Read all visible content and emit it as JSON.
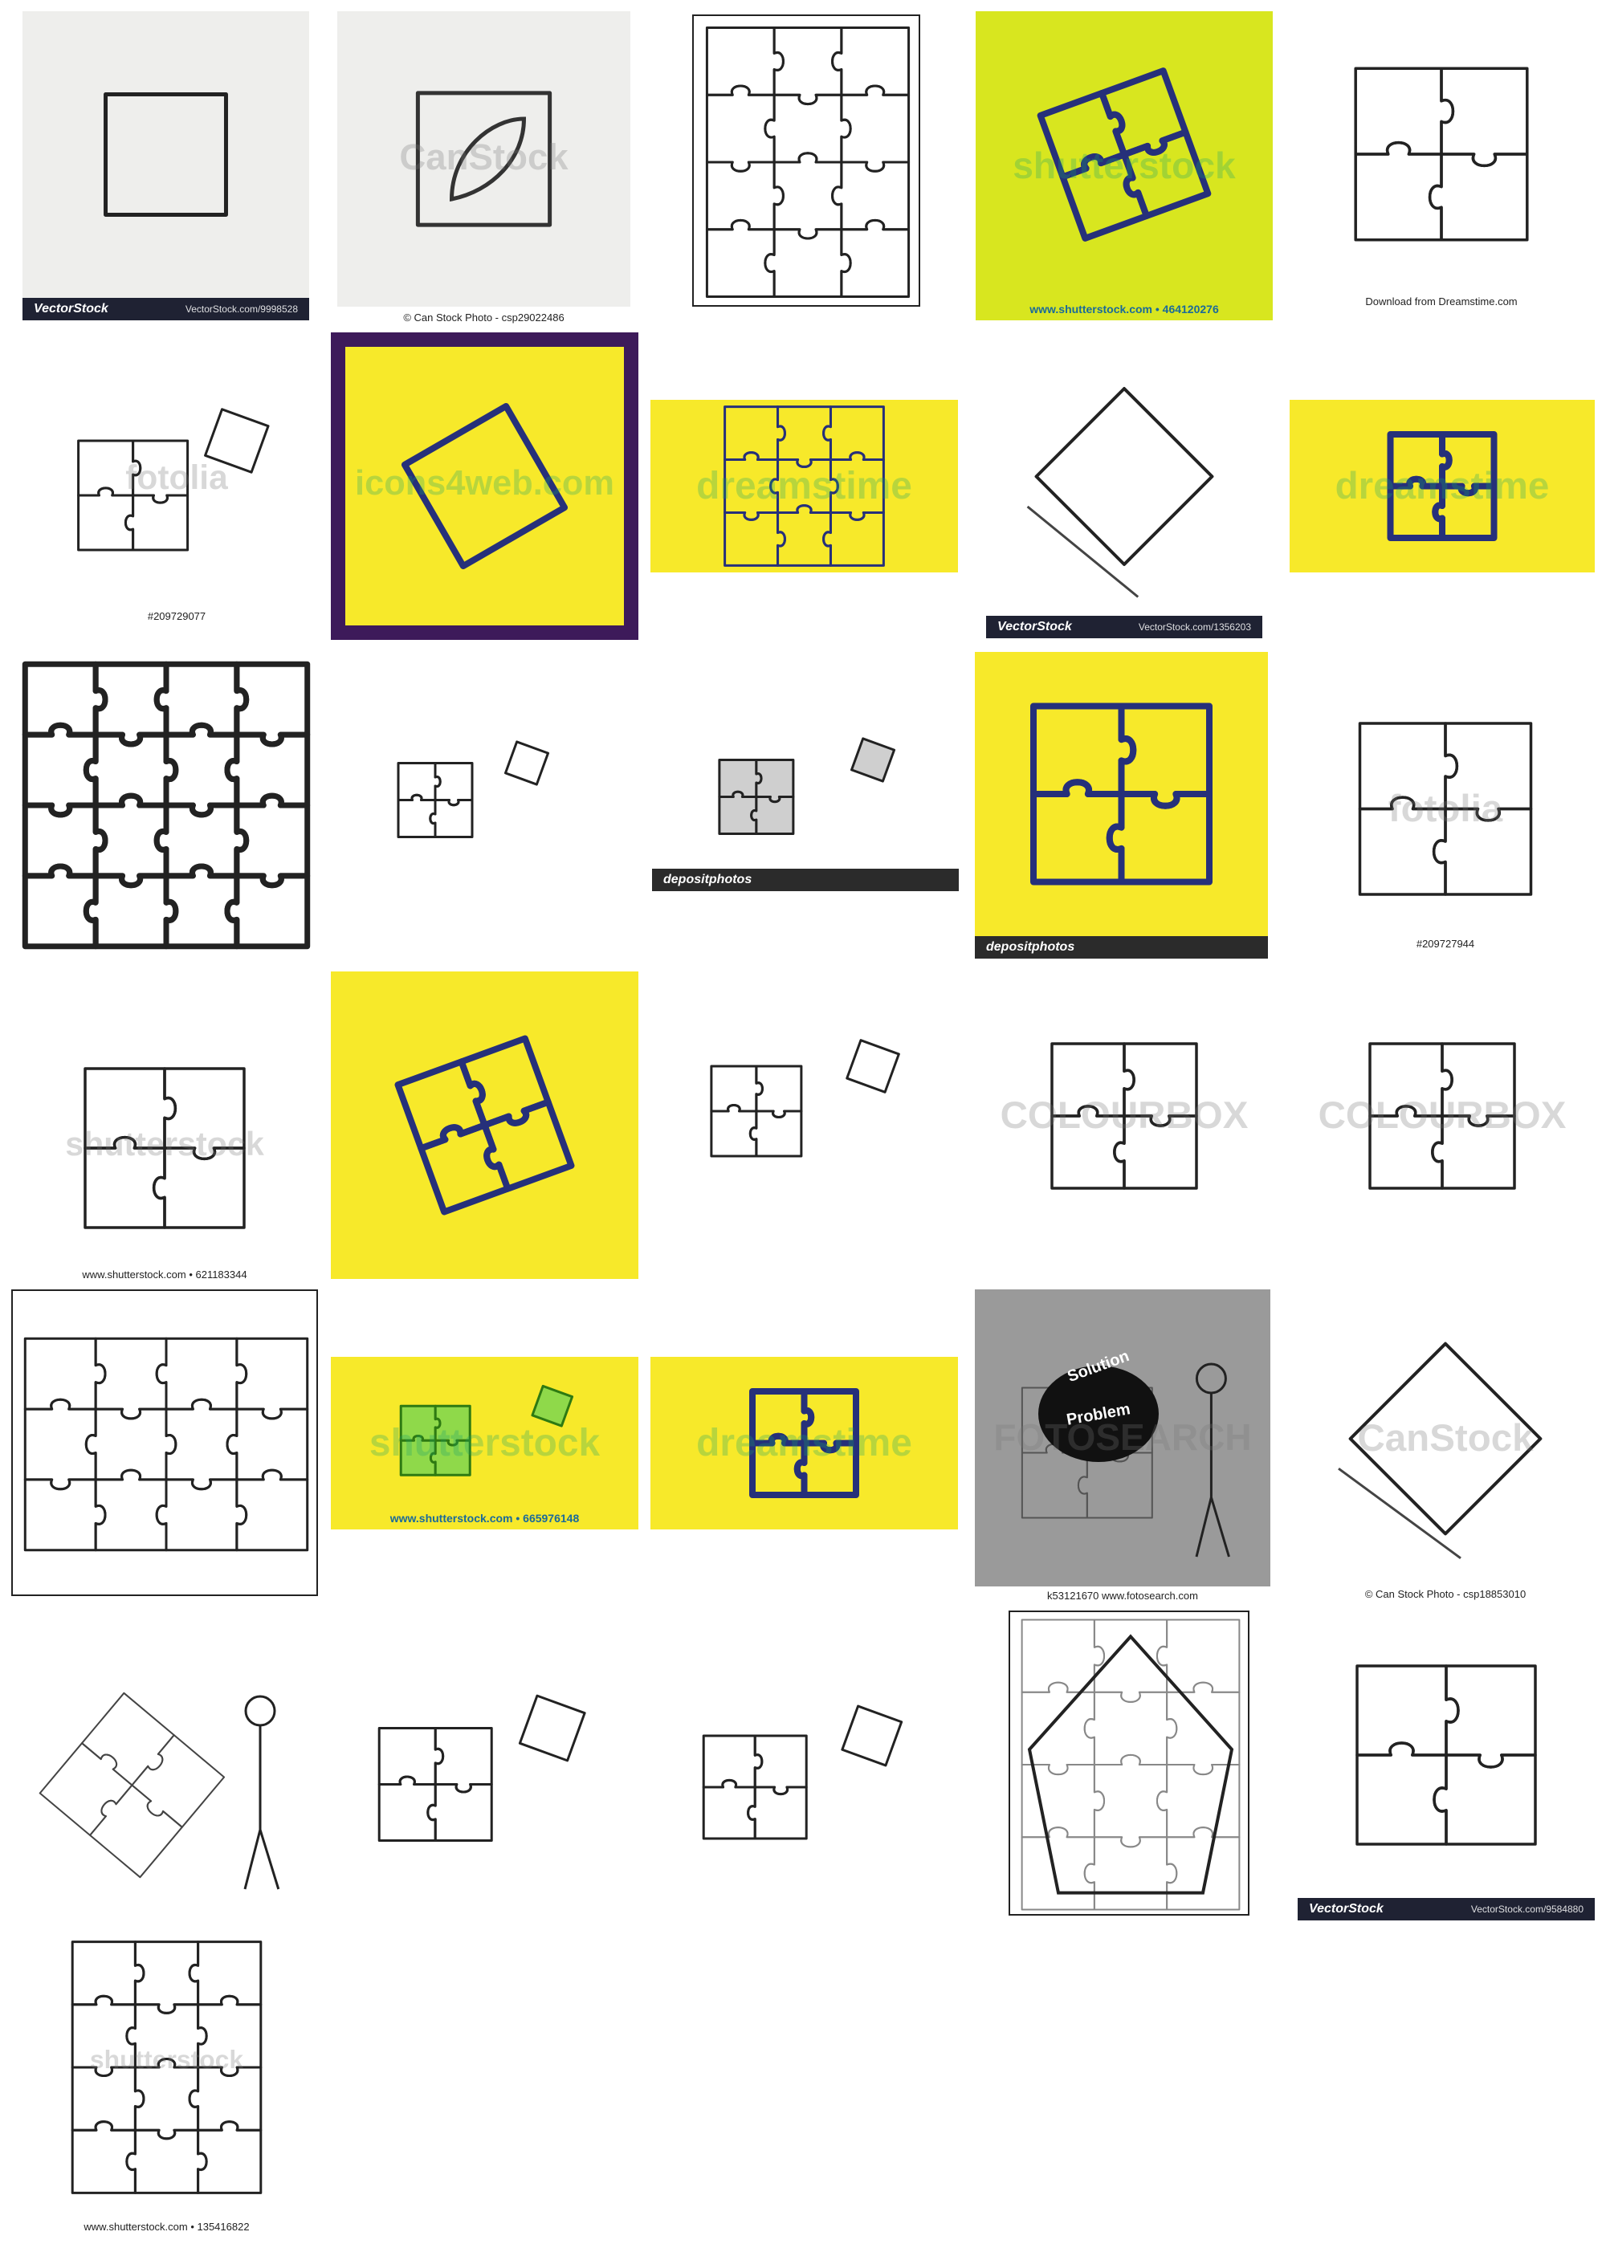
{
  "colors": {
    "yellow": "#f7e92a",
    "lime": "#d8e61f",
    "navy": "#26307a",
    "purple": "#3d1a5a",
    "green": "#8fd94a",
    "dark_bar": "#1f2233"
  },
  "tiles": [
    {
      "id": 1,
      "brand": "VectorStock",
      "code": "VectorStock.com/9998528",
      "icon": "puzzle-piece-icon"
    },
    {
      "id": 2,
      "watermark": "CanStock",
      "caption": "© Can Stock Photo - csp29022486",
      "icon": "leaf-puzzle-icon"
    },
    {
      "id": 3,
      "icon": "puzzle-grid-icon"
    },
    {
      "id": 4,
      "watermark": "shutterstock",
      "caption": "www.shutterstock.com • 464120276",
      "icon": "puzzle-cluster-icon"
    },
    {
      "id": 5,
      "caption": "Download from Dreamstime.com",
      "icon": "puzzle-four-icon"
    },
    {
      "id": 6,
      "watermark": "fotolia",
      "caption": "#209729077",
      "icon": "puzzle-pieces-icon"
    },
    {
      "id": 7,
      "watermark": "icons4web.com",
      "icon": "puzzle-piece-icon"
    },
    {
      "id": 8,
      "watermark": "dreamstime",
      "icon": "puzzle-grid-icon"
    },
    {
      "id": 9,
      "brand": "VectorStock",
      "code": "VectorStock.com/1356203",
      "icon": "puzzle-3d-icon"
    },
    {
      "id": 10,
      "watermark": "dreamstime",
      "icon": "puzzle-four-icon"
    },
    {
      "id": 11,
      "icon": "puzzle-grid-icon"
    },
    {
      "id": 12,
      "icon": "puzzle-pieces-icon"
    },
    {
      "id": 13,
      "brand": "depositphotos",
      "icon": "puzzle-pieces-icon"
    },
    {
      "id": 14,
      "brand": "depositphotos",
      "icon": "puzzle-four-icon"
    },
    {
      "id": 15,
      "watermark": "fotolia",
      "caption": "#209727944",
      "icon": "puzzle-four-icon"
    },
    {
      "id": 16,
      "watermark": "shutterstock",
      "caption": "www.shutterstock.com • 621183344",
      "icon": "puzzle-four-icon"
    },
    {
      "id": 17,
      "icon": "puzzle-cluster-icon"
    },
    {
      "id": 18,
      "icon": "puzzle-pieces-icon"
    },
    {
      "id": 19,
      "watermark": "COLOURBOX",
      "icon": "puzzle-four-icon"
    },
    {
      "id": 20,
      "watermark": "COLOURBOX",
      "icon": "puzzle-four-icon"
    },
    {
      "id": 21,
      "icon": "puzzle-grid-icon"
    },
    {
      "id": 22,
      "watermark": "shutterstock",
      "caption": "www.shutterstock.com • 665976148",
      "icon": "puzzle-pieces-icon"
    },
    {
      "id": 23,
      "watermark": "dreamstime",
      "icon": "puzzle-four-icon"
    },
    {
      "id": 24,
      "watermark": "FOTOSEARCH",
      "caption": "k53121670  www.fotosearch.com",
      "label1": "Solution",
      "label2": "Problem",
      "icon": "person-puzzle-icon"
    },
    {
      "id": 25,
      "watermark": "CanStock",
      "caption": "© Can Stock Photo - csp18853010",
      "icon": "puzzle-3d-icon"
    },
    {
      "id": 26,
      "icon": "person-puzzle-icon"
    },
    {
      "id": 27,
      "icon": "puzzle-pieces-icon"
    },
    {
      "id": 28,
      "icon": "puzzle-pieces-icon"
    },
    {
      "id": 29,
      "icon": "star-puzzle-icon"
    },
    {
      "id": 30,
      "brand": "VectorStock",
      "code": "VectorStock.com/9584880",
      "icon": "puzzle-four-icon"
    },
    {
      "id": 31,
      "watermark": "shutterstock",
      "caption": "www.shutterstock.com • 135416822",
      "icon": "puzzle-grid-icon"
    }
  ]
}
